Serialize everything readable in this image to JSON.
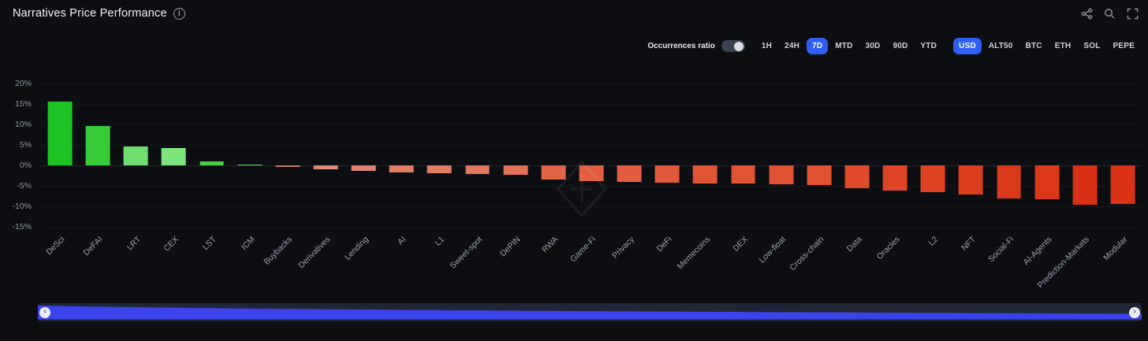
{
  "header": {
    "title": "Narratives Price Performance",
    "info_icon": "i"
  },
  "toolbar": {
    "icons": [
      "share-icon",
      "zoom-icon",
      "fullscreen-icon"
    ]
  },
  "controls": {
    "occurrences_label": "Occurrences ratio",
    "occurrences_toggle_on": false,
    "timeframes": [
      {
        "label": "1H",
        "active": false
      },
      {
        "label": "24H",
        "active": false
      },
      {
        "label": "7D",
        "active": true
      },
      {
        "label": "MTD",
        "active": false
      },
      {
        "label": "30D",
        "active": false
      },
      {
        "label": "90D",
        "active": false
      },
      {
        "label": "YTD",
        "active": false
      }
    ],
    "currencies": [
      {
        "label": "USD",
        "active": true
      },
      {
        "label": "ALT50",
        "active": false
      },
      {
        "label": "BTC",
        "active": false
      },
      {
        "label": "ETH",
        "active": false
      },
      {
        "label": "SOL",
        "active": false
      },
      {
        "label": "PEPE",
        "active": false
      }
    ],
    "accent_color": "#2e5ff2"
  },
  "chart_data": {
    "type": "bar",
    "title": "Narratives Price Performance",
    "xlabel": "",
    "ylabel": "",
    "ylim": [
      -15,
      20
    ],
    "y_ticks": [
      20,
      15,
      10,
      5,
      0,
      -5,
      -10,
      -15
    ],
    "y_tick_suffix": "%",
    "grid": "subtle",
    "legend": "none",
    "categories": [
      "DeSci",
      "DeFAI",
      "LRT",
      "CEX",
      "LST",
      "ICM",
      "Buybacks",
      "Derivatives",
      "Lending",
      "AI",
      "L1",
      "Sweet-spot",
      "DePIN",
      "RWA",
      "Game-Fi",
      "Privacy",
      "DeFi",
      "Memecoins",
      "DEX",
      "Low-float",
      "Cross-chain",
      "Data",
      "Oracles",
      "L2",
      "NFT",
      "Social-Fi",
      "AI-Agents",
      "Prediction-Markets",
      "Modular"
    ],
    "values": [
      15.5,
      9.6,
      4.6,
      4.3,
      1.0,
      0.2,
      -0.3,
      -1.0,
      -1.4,
      -1.8,
      -1.9,
      -2.1,
      -2.4,
      -3.4,
      -3.9,
      -4.0,
      -4.2,
      -4.4,
      -4.5,
      -4.7,
      -4.8,
      -5.6,
      -6.2,
      -6.6,
      -7.2,
      -8.0,
      -8.2,
      -9.6,
      -9.5
    ],
    "colors": [
      "#1cc322",
      "#38cb38",
      "#70dd70",
      "#7ee47e",
      "#47cf47",
      "#6bd46b",
      "#c4786b",
      "#dd8672",
      "#dc8270",
      "#e07e64",
      "#e07d62",
      "#e1775c",
      "#e17256",
      "#e2654a",
      "#e25e42",
      "#e25d40",
      "#e1593b",
      "#e15537",
      "#e15436",
      "#e05132",
      "#e05031",
      "#df4a2b",
      "#de4527",
      "#dd4223",
      "#dc3d1f",
      "#db391b",
      "#db381a",
      "#d93115",
      "#d93216"
    ]
  },
  "navigator": {
    "left_arrow": "‹",
    "right_arrow": "›",
    "fill_color": "#3d43ea",
    "track_color": "#1f2737"
  }
}
